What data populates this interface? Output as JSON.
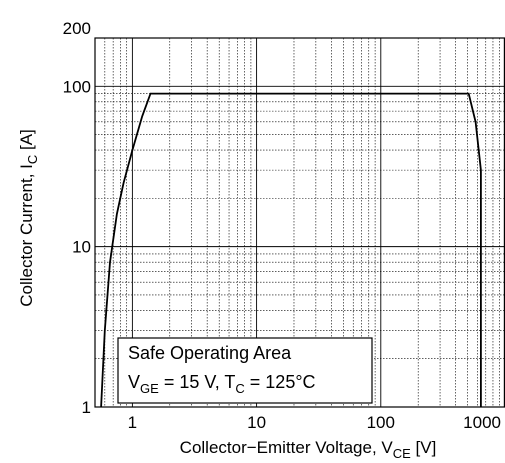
{
  "chart_data": {
    "type": "line",
    "title": "",
    "xlabel": {
      "main": "Collector−Emitter Voltage, V",
      "sub": "CE",
      "unit": " [V]"
    },
    "ylabel": {
      "main": "Collector Current, I",
      "sub": "C",
      "unit": " [A]"
    },
    "x_scale": "log",
    "y_scale": "log",
    "xlim": [
      0.5,
      1000
    ],
    "ylim": [
      1,
      200
    ],
    "x_ticks": [
      {
        "value": 1,
        "label": "1"
      },
      {
        "value": 10,
        "label": "10"
      },
      {
        "value": 100,
        "label": "100"
      },
      {
        "value": 1000,
        "label": "1000"
      }
    ],
    "y_ticks": [
      {
        "value": 1,
        "label": "1"
      },
      {
        "value": 10,
        "label": "10"
      },
      {
        "value": 100,
        "label": "100"
      },
      {
        "value": 200,
        "label": "200"
      }
    ],
    "grid": true,
    "series": [
      {
        "x": [
          0.56,
          0.6,
          0.66,
          0.75,
          0.85,
          1.0,
          1.2,
          1.4,
          510,
          580,
          640,
          640
        ],
        "y": [
          1,
          3,
          8,
          16,
          25,
          40,
          65,
          90,
          90,
          60,
          30,
          1
        ]
      }
    ],
    "annotation": {
      "line1": "Safe Operating Area",
      "line2": {
        "v": "V",
        "v_sub": "GE",
        "v_val": " = 15 V, ",
        "t": "T",
        "t_sub": "C",
        "t_val": " = 125°C"
      }
    }
  }
}
